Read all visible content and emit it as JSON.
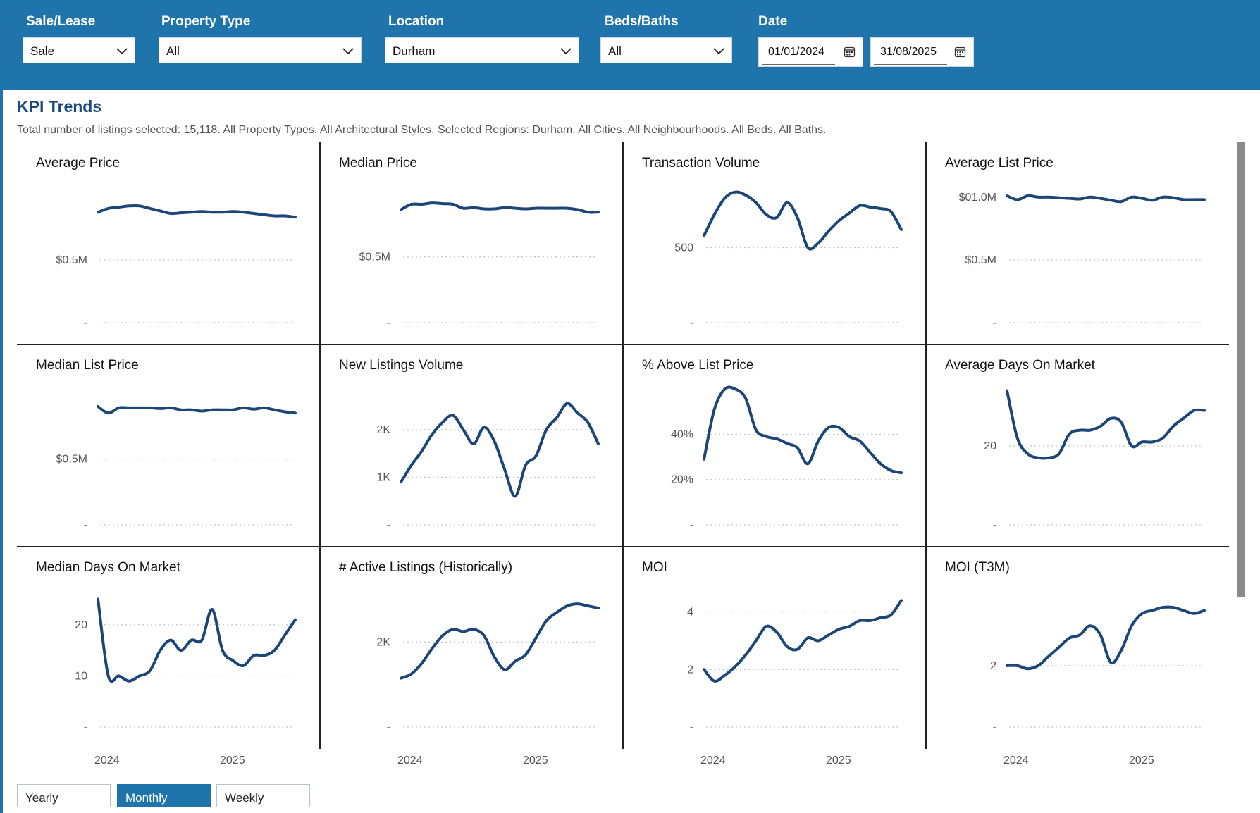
{
  "filters": {
    "sale_lease": {
      "label": "Sale/Lease",
      "value": "Sale"
    },
    "property_type": {
      "label": "Property Type",
      "value": "All"
    },
    "location": {
      "label": "Location",
      "value": "Durham"
    },
    "beds_baths": {
      "label": "Beds/Baths",
      "value": "All"
    },
    "date": {
      "label": "Date",
      "start": "01/01/2024",
      "end": "31/08/2025"
    }
  },
  "header": {
    "title": "KPI Trends",
    "subtitle": "Total number of listings selected: 15,118. All Property Types. All Architectural Styles. Selected Regions: Durham. All Cities. All Neighbourhoods. All Beds. All Baths."
  },
  "colors": {
    "header": "#1f74ac",
    "line": "#1c4578",
    "title": "#1c4a7c"
  },
  "x_axis": {
    "labels": [
      "2024",
      "2025"
    ]
  },
  "period_buttons": [
    {
      "label": "Yearly",
      "active": false
    },
    {
      "label": "Monthly",
      "active": true
    },
    {
      "label": "Weekly",
      "active": false
    }
  ],
  "chart_data": [
    {
      "type": "line",
      "title": "Average Price",
      "x": [
        "2024-01",
        "2024-02",
        "2024-03",
        "2024-04",
        "2024-05",
        "2024-06",
        "2024-07",
        "2024-08",
        "2024-09",
        "2024-10",
        "2024-11",
        "2024-12",
        "2025-01",
        "2025-02",
        "2025-03",
        "2025-04",
        "2025-05",
        "2025-06",
        "2025-07",
        "2025-08"
      ],
      "values": [
        0.88,
        0.91,
        0.92,
        0.93,
        0.93,
        0.91,
        0.89,
        0.87,
        0.875,
        0.88,
        0.885,
        0.88,
        0.88,
        0.885,
        0.88,
        0.87,
        0.86,
        0.85,
        0.85,
        0.84
      ],
      "ylim": [
        0,
        1.1
      ],
      "ticks": [
        {
          "v": 0.5,
          "label": "$0.5M"
        },
        {
          "v": 0,
          "label": "-"
        }
      ]
    },
    {
      "type": "line",
      "title": "Median Price",
      "x": [
        "2024-01",
        "2024-02",
        "2024-03",
        "2024-04",
        "2024-05",
        "2024-06",
        "2024-07",
        "2024-08",
        "2024-09",
        "2024-10",
        "2024-11",
        "2024-12",
        "2025-01",
        "2025-02",
        "2025-03",
        "2025-04",
        "2025-05",
        "2025-06",
        "2025-07",
        "2025-08"
      ],
      "values": [
        0.86,
        0.9,
        0.9,
        0.91,
        0.905,
        0.9,
        0.87,
        0.875,
        0.865,
        0.865,
        0.875,
        0.87,
        0.865,
        0.87,
        0.87,
        0.87,
        0.87,
        0.86,
        0.84,
        0.84
      ],
      "ylim": [
        0,
        1.05
      ],
      "ticks": [
        {
          "v": 0.5,
          "label": "$0.5M"
        },
        {
          "v": 0,
          "label": "-"
        }
      ]
    },
    {
      "type": "line",
      "title": "Transaction Volume",
      "x": [
        "2024-01",
        "2024-02",
        "2024-03",
        "2024-04",
        "2024-05",
        "2024-06",
        "2024-07",
        "2024-08",
        "2024-09",
        "2024-10",
        "2024-11",
        "2024-12",
        "2025-01",
        "2025-02",
        "2025-03",
        "2025-04",
        "2025-05",
        "2025-06",
        "2025-07",
        "2025-08"
      ],
      "values": [
        580,
        720,
        830,
        870,
        850,
        800,
        720,
        700,
        800,
        700,
        500,
        530,
        610,
        680,
        730,
        780,
        770,
        760,
        740,
        620
      ],
      "ylim": [
        0,
        920
      ],
      "ticks": [
        {
          "v": 500,
          "label": "500"
        },
        {
          "v": 0,
          "label": "-"
        }
      ]
    },
    {
      "type": "line",
      "title": "Average List Price",
      "x": [
        "2024-01",
        "2024-02",
        "2024-03",
        "2024-04",
        "2024-05",
        "2024-06",
        "2024-07",
        "2024-08",
        "2024-09",
        "2024-10",
        "2024-11",
        "2024-12",
        "2025-01",
        "2025-02",
        "2025-03",
        "2025-04",
        "2025-05",
        "2025-06",
        "2025-07",
        "2025-08"
      ],
      "values": [
        1.01,
        0.98,
        1.01,
        1.0,
        1.0,
        0.995,
        0.99,
        0.985,
        1.0,
        0.99,
        0.975,
        0.965,
        1.0,
        0.99,
        0.975,
        1.0,
        0.995,
        0.98,
        0.98,
        0.98
      ],
      "ylim": [
        0,
        1.1
      ],
      "ticks": [
        {
          "v": 1.0,
          "label": "$01.0M"
        },
        {
          "v": 0.5,
          "label": "$0.5M"
        },
        {
          "v": 0,
          "label": "-"
        }
      ]
    },
    {
      "type": "line",
      "title": "Median List Price",
      "x": [
        "2024-01",
        "2024-02",
        "2024-03",
        "2024-04",
        "2024-05",
        "2024-06",
        "2024-07",
        "2024-08",
        "2024-09",
        "2024-10",
        "2024-11",
        "2024-12",
        "2025-01",
        "2025-02",
        "2025-03",
        "2025-04",
        "2025-05",
        "2025-06",
        "2025-07",
        "2025-08"
      ],
      "values": [
        0.9,
        0.85,
        0.89,
        0.89,
        0.89,
        0.89,
        0.885,
        0.89,
        0.875,
        0.875,
        0.865,
        0.875,
        0.875,
        0.875,
        0.89,
        0.88,
        0.89,
        0.875,
        0.86,
        0.85
      ],
      "ylim": [
        0,
        1.05
      ],
      "ticks": [
        {
          "v": 0.5,
          "label": "$0.5M"
        },
        {
          "v": 0,
          "label": "-"
        }
      ]
    },
    {
      "type": "line",
      "title": "New Listings Volume",
      "x": [
        "2024-01",
        "2024-02",
        "2024-03",
        "2024-04",
        "2024-05",
        "2024-06",
        "2024-07",
        "2024-08",
        "2024-09",
        "2024-10",
        "2024-11",
        "2024-12",
        "2025-01",
        "2025-02",
        "2025-03",
        "2025-04",
        "2025-05",
        "2025-06",
        "2025-07",
        "2025-08"
      ],
      "values": [
        900,
        1250,
        1550,
        1900,
        2150,
        2300,
        2000,
        1700,
        2050,
        1750,
        1150,
        600,
        1250,
        1450,
        2000,
        2250,
        2550,
        2350,
        2150,
        1700
      ],
      "ylim": [
        0,
        2900
      ],
      "ticks": [
        {
          "v": 2000,
          "label": "2K"
        },
        {
          "v": 1000,
          "label": "1K"
        },
        {
          "v": 0,
          "label": "-"
        }
      ]
    },
    {
      "type": "line",
      "title": "% Above List Price",
      "x": [
        "2024-01",
        "2024-02",
        "2024-03",
        "2024-04",
        "2024-05",
        "2024-06",
        "2024-07",
        "2024-08",
        "2024-09",
        "2024-10",
        "2024-11",
        "2024-12",
        "2025-01",
        "2025-02",
        "2025-03",
        "2025-04",
        "2025-05",
        "2025-06",
        "2025-07",
        "2025-08"
      ],
      "values": [
        29,
        51,
        60,
        60,
        56,
        42,
        39,
        38,
        36,
        34,
        27,
        37,
        43,
        43,
        39,
        37,
        32,
        27,
        24,
        23
      ],
      "ylim": [
        0,
        61
      ],
      "ticks": [
        {
          "v": 40,
          "label": "40%"
        },
        {
          "v": 20,
          "label": "20%"
        },
        {
          "v": 0,
          "label": "-"
        }
      ]
    },
    {
      "type": "line",
      "title": "Average Days On Market",
      "x": [
        "2024-01",
        "2024-02",
        "2024-03",
        "2024-04",
        "2024-05",
        "2024-06",
        "2024-07",
        "2024-08",
        "2024-09",
        "2024-10",
        "2024-11",
        "2024-12",
        "2025-01",
        "2025-02",
        "2025-03",
        "2025-04",
        "2025-05",
        "2025-06",
        "2025-07",
        "2025-08"
      ],
      "values": [
        34,
        22,
        18,
        17,
        17,
        18,
        23,
        24,
        24,
        25,
        27,
        26,
        20,
        21,
        21,
        22,
        25,
        27,
        29,
        29
      ],
      "ylim": [
        0,
        35
      ],
      "ticks": [
        {
          "v": 20,
          "label": "20"
        },
        {
          "v": 0,
          "label": "-"
        }
      ]
    },
    {
      "type": "line",
      "title": "Median Days On Market",
      "x": [
        "2024-01",
        "2024-02",
        "2024-03",
        "2024-04",
        "2024-05",
        "2024-06",
        "2024-07",
        "2024-08",
        "2024-09",
        "2024-10",
        "2024-11",
        "2024-12",
        "2025-01",
        "2025-02",
        "2025-03",
        "2025-04",
        "2025-05",
        "2025-06",
        "2025-07",
        "2025-08"
      ],
      "values": [
        25,
        10,
        10,
        9,
        10,
        11,
        15,
        17,
        15,
        17,
        17,
        23,
        15,
        13,
        12,
        14,
        14,
        15,
        18,
        21
      ],
      "ylim": [
        0,
        27
      ],
      "ticks": [
        {
          "v": 20,
          "label": "20"
        },
        {
          "v": 10,
          "label": "10"
        },
        {
          "v": 0,
          "label": "-"
        }
      ]
    },
    {
      "type": "line",
      "title": "# Active Listings (Historically)",
      "x": [
        "2024-01",
        "2024-02",
        "2024-03",
        "2024-04",
        "2024-05",
        "2024-06",
        "2024-07",
        "2024-08",
        "2024-09",
        "2024-10",
        "2024-11",
        "2024-12",
        "2025-01",
        "2025-02",
        "2025-03",
        "2025-04",
        "2025-05",
        "2025-06",
        "2025-07",
        "2025-08"
      ],
      "values": [
        1150,
        1250,
        1500,
        1850,
        2150,
        2300,
        2250,
        2300,
        2150,
        1650,
        1350,
        1550,
        1700,
        2100,
        2500,
        2700,
        2850,
        2900,
        2850,
        2800
      ],
      "ylim": [
        0,
        3250
      ],
      "ticks": [
        {
          "v": 2000,
          "label": "2K"
        },
        {
          "v": 0,
          "label": "-"
        }
      ]
    },
    {
      "type": "line",
      "title": "MOI",
      "x": [
        "2024-01",
        "2024-02",
        "2024-03",
        "2024-04",
        "2024-05",
        "2024-06",
        "2024-07",
        "2024-08",
        "2024-09",
        "2024-10",
        "2024-11",
        "2024-12",
        "2025-01",
        "2025-02",
        "2025-03",
        "2025-04",
        "2025-05",
        "2025-06",
        "2025-07",
        "2025-08"
      ],
      "values": [
        2.0,
        1.6,
        1.8,
        2.1,
        2.5,
        3.0,
        3.5,
        3.3,
        2.8,
        2.7,
        3.1,
        3.0,
        3.2,
        3.4,
        3.5,
        3.7,
        3.7,
        3.8,
        3.9,
        4.4
      ],
      "ylim": [
        0,
        4.8
      ],
      "ticks": [
        {
          "v": 4,
          "label": "4"
        },
        {
          "v": 2,
          "label": "2"
        },
        {
          "v": 0,
          "label": "-"
        }
      ]
    },
    {
      "type": "line",
      "title": "MOI (T3M)",
      "x": [
        "2024-01",
        "2024-02",
        "2024-03",
        "2024-04",
        "2024-05",
        "2024-06",
        "2024-07",
        "2024-08",
        "2024-09",
        "2024-10",
        "2024-11",
        "2024-12",
        "2025-01",
        "2025-02",
        "2025-03",
        "2025-04",
        "2025-05",
        "2025-06",
        "2025-07",
        "2025-08"
      ],
      "values": [
        2.0,
        2.0,
        1.9,
        2.0,
        2.3,
        2.6,
        2.9,
        3.0,
        3.3,
        3.0,
        2.1,
        2.5,
        3.3,
        3.7,
        3.8,
        3.9,
        3.9,
        3.8,
        3.7,
        3.8
      ],
      "ylim": [
        0,
        4.5
      ],
      "ticks": [
        {
          "v": 2,
          "label": "2"
        },
        {
          "v": 0,
          "label": "-"
        }
      ]
    }
  ]
}
